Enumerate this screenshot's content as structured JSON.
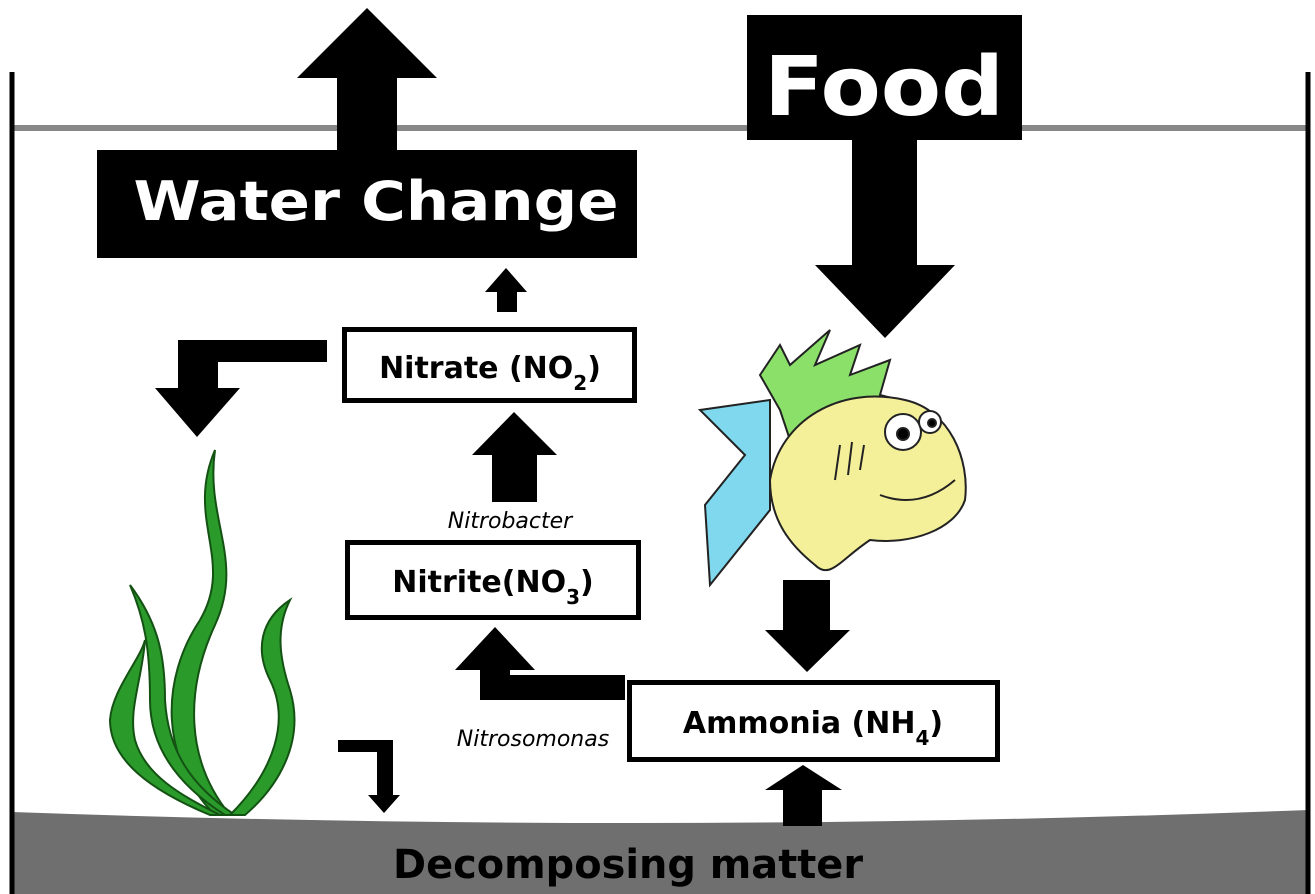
{
  "food": {
    "label": "Food"
  },
  "water_change": {
    "label": "Water Change"
  },
  "nodes": [
    {
      "label": "Nitrate (NO",
      "subscript": "2",
      "suffix": ")"
    },
    {
      "label": "Nitrite(NO",
      "subscript": "3",
      "suffix": ")"
    },
    {
      "label": "Ammonia (NH",
      "subscript": "4",
      "suffix": ")"
    }
  ],
  "bacteria": [
    "Nitrobacter",
    "Nitrosomonas"
  ],
  "bottom": {
    "label": "Decomposing matter"
  }
}
